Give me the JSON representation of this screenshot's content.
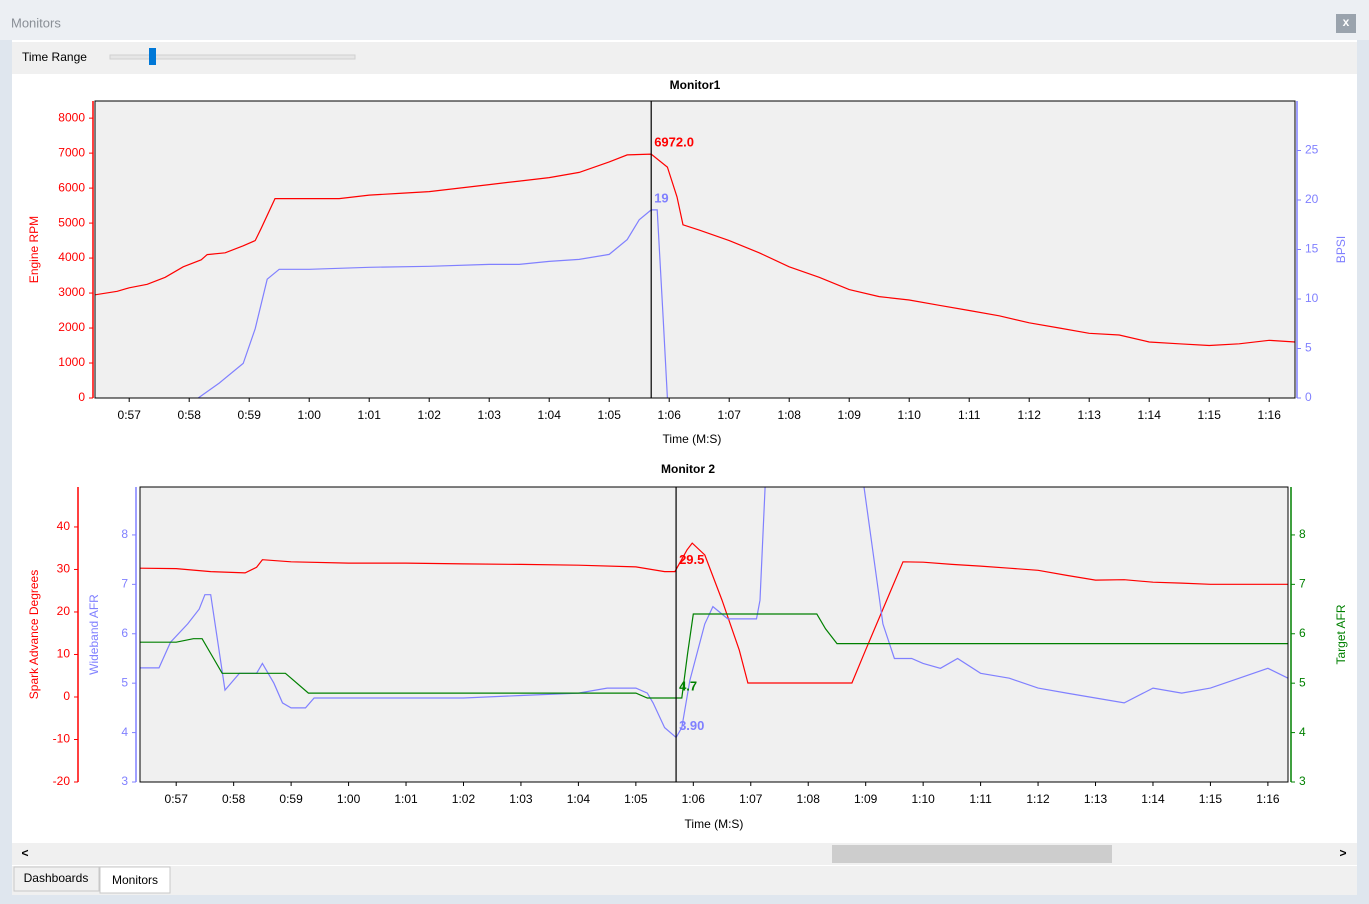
{
  "window": {
    "title": "Monitors",
    "close": "x"
  },
  "toolbar": {
    "label": "Time Range"
  },
  "scrollbar": {
    "left": "<",
    "right": ">"
  },
  "tabs": [
    "Dashboards",
    "Monitors"
  ],
  "chart_data": [
    {
      "type": "line",
      "title": "Monitor1",
      "xlabel": "Time (M:S)",
      "ylabel": "Engine RPM",
      "y2label": "BPSI",
      "xlim": [
        56.43,
        76.43
      ],
      "ylim": [
        0,
        8490
      ],
      "y2lim": [
        0,
        30
      ],
      "xticks": [
        {
          "value": 57,
          "label": "0:57"
        },
        {
          "value": 58,
          "label": "0:58"
        },
        {
          "value": 59,
          "label": "0:59"
        },
        {
          "value": 60,
          "label": "1:00"
        },
        {
          "value": 61,
          "label": "1:01"
        },
        {
          "value": 62,
          "label": "1:02"
        },
        {
          "value": 63,
          "label": "1:03"
        },
        {
          "value": 64,
          "label": "1:04"
        },
        {
          "value": 65,
          "label": "1:05"
        },
        {
          "value": 66,
          "label": "1:06"
        },
        {
          "value": 67,
          "label": "1:07"
        },
        {
          "value": 68,
          "label": "1:08"
        },
        {
          "value": 69,
          "label": "1:09"
        },
        {
          "value": 70,
          "label": "1:10"
        },
        {
          "value": 71,
          "label": "1:11"
        },
        {
          "value": 72,
          "label": "1:12"
        },
        {
          "value": 73,
          "label": "1:13"
        },
        {
          "value": 74,
          "label": "1:14"
        },
        {
          "value": 75,
          "label": "1:15"
        },
        {
          "value": 76,
          "label": "1:16"
        }
      ],
      "yticks": [
        0,
        1000,
        2000,
        3000,
        4000,
        5000,
        6000,
        7000,
        8000
      ],
      "y2ticks": [
        0,
        5,
        10,
        15,
        20,
        25
      ],
      "series": [
        {
          "color": "#ff0000",
          "axis": "y",
          "x": [
            56.43,
            56.8,
            57.0,
            57.3,
            57.6,
            57.9,
            58.2,
            58.3,
            58.6,
            58.9,
            59.1,
            59.2,
            59.43,
            60.0,
            60.5,
            61.0,
            61.5,
            62.0,
            62.5,
            63.0,
            63.5,
            64.0,
            64.5,
            65.0,
            65.3,
            65.7,
            65.97,
            66.13,
            66.23,
            66.5,
            67.0,
            67.5,
            68.0,
            68.5,
            69.0,
            69.5,
            70.0,
            70.5,
            71.0,
            71.5,
            72.0,
            72.5,
            73.0,
            73.5,
            74.0,
            74.5,
            75.0,
            75.5,
            76.0,
            76.43
          ],
          "values": [
            2950,
            3050,
            3150,
            3250,
            3450,
            3750,
            3950,
            4100,
            4150,
            4350,
            4500,
            4850,
            5700,
            5700,
            5700,
            5800,
            5850,
            5900,
            6000,
            6100,
            6200,
            6300,
            6450,
            6750,
            6950,
            6972,
            6600,
            5750,
            4950,
            4800,
            4500,
            4150,
            3750,
            3450,
            3100,
            2900,
            2800,
            2650,
            2500,
            2350,
            2150,
            2000,
            1850,
            1800,
            1600,
            1550,
            1500,
            1550,
            1650,
            1600
          ]
        },
        {
          "color": "#8080ff",
          "axis": "y2",
          "x": [
            58.15,
            58.5,
            58.9,
            59.1,
            59.3,
            59.5,
            60.0,
            61.0,
            62.0,
            63.0,
            63.5,
            64.0,
            64.5,
            65.0,
            65.3,
            65.5,
            65.7,
            65.8,
            65.9,
            65.97
          ],
          "values": [
            0,
            1.5,
            3.5,
            7,
            12,
            13,
            13,
            13.2,
            13.3,
            13.5,
            13.5,
            13.8,
            14,
            14.5,
            16,
            18,
            19,
            19,
            8,
            0
          ]
        }
      ],
      "cursor": {
        "x": 65.7,
        "values": [
          6972,
          19
        ],
        "value_labels": [
          "6972.0",
          "19"
        ]
      }
    },
    {
      "type": "line",
      "title": "Monitor 2",
      "xlabel": "Time (M:S)",
      "ylabel": "Spark Advance Degrees",
      "y3label": "Wideband AFR",
      "y2label": "Target AFR",
      "xlim": [
        56.37,
        76.35
      ],
      "ylim": [
        -20,
        49.4
      ],
      "y3lim": [
        3,
        8.97
      ],
      "y2lim": [
        3,
        8.97
      ],
      "xticks": [
        {
          "value": 57,
          "label": "0:57"
        },
        {
          "value": 58,
          "label": "0:58"
        },
        {
          "value": 59,
          "label": "0:59"
        },
        {
          "value": 60,
          "label": "1:00"
        },
        {
          "value": 61,
          "label": "1:01"
        },
        {
          "value": 62,
          "label": "1:02"
        },
        {
          "value": 63,
          "label": "1:03"
        },
        {
          "value": 64,
          "label": "1:04"
        },
        {
          "value": 65,
          "label": "1:05"
        },
        {
          "value": 66,
          "label": "1:06"
        },
        {
          "value": 67,
          "label": "1:07"
        },
        {
          "value": 68,
          "label": "1:08"
        },
        {
          "value": 69,
          "label": "1:09"
        },
        {
          "value": 70,
          "label": "1:10"
        },
        {
          "value": 71,
          "label": "1:11"
        },
        {
          "value": 72,
          "label": "1:12"
        },
        {
          "value": 73,
          "label": "1:13"
        },
        {
          "value": 74,
          "label": "1:14"
        },
        {
          "value": 75,
          "label": "1:15"
        },
        {
          "value": 76,
          "label": "1:16"
        }
      ],
      "yticks": [
        -20,
        -10,
        0,
        10,
        20,
        30,
        40
      ],
      "y3ticks": [
        3,
        4,
        5,
        6,
        7,
        8
      ],
      "y2ticks": [
        3,
        4,
        5,
        6,
        7,
        8
      ],
      "series": [
        {
          "color": "#ff0000",
          "axis": "y",
          "x": [
            56.37,
            57.0,
            57.6,
            58.2,
            58.4,
            58.5,
            59.0,
            60.0,
            61.0,
            62.0,
            63.0,
            64.0,
            65.0,
            65.5,
            65.68,
            65.89,
            65.98,
            66.2,
            66.5,
            66.8,
            66.95,
            67.5,
            68.0,
            68.76,
            69.0,
            69.65,
            70.0,
            70.5,
            71.0,
            71.5,
            72.0,
            72.5,
            73.0,
            73.5,
            74.0,
            74.5,
            75.0,
            75.5,
            76.35
          ],
          "values": [
            30.3,
            30.2,
            29.5,
            29.2,
            30.5,
            32.3,
            31.8,
            31.5,
            31.5,
            31.3,
            31.2,
            31.0,
            30.6,
            29.5,
            29.5,
            34.6,
            36.2,
            33.4,
            22.8,
            11,
            3.3,
            3.3,
            3.3,
            3.3,
            11.1,
            31.8,
            31.7,
            31.2,
            30.8,
            30.3,
            29.8,
            28.6,
            27.5,
            27.6,
            27.0,
            26.8,
            26.5,
            26.5,
            26.5
          ]
        },
        {
          "color": "#8080ff",
          "axis": "y3",
          "x": [
            56.37,
            56.7,
            56.9,
            57.2,
            57.4,
            57.5,
            57.6,
            57.85,
            58.1,
            58.4,
            58.5,
            58.7,
            58.85,
            59.0,
            59.25,
            59.4,
            60.0,
            61.0,
            62.0,
            63.0,
            64.0,
            64.5,
            65.0,
            65.2,
            65.3,
            65.5,
            65.7,
            65.8,
            65.94,
            66.2,
            66.34,
            66.6,
            67.0,
            67.1,
            67.16,
            67.25,
            67.6,
            68.97,
            69.3,
            69.5,
            69.8,
            70.0,
            70.3,
            70.6,
            71.0,
            71.5,
            72.0,
            72.5,
            73.0,
            73.5,
            74.0,
            74.5,
            75.0,
            75.5,
            76.0,
            76.35
          ],
          "values": [
            5.31,
            5.31,
            5.83,
            6.2,
            6.5,
            6.79,
            6.79,
            4.86,
            5.2,
            5.2,
            5.4,
            5.0,
            4.6,
            4.5,
            4.5,
            4.7,
            4.7,
            4.7,
            4.7,
            4.75,
            4.8,
            4.9,
            4.9,
            4.8,
            4.6,
            4.1,
            3.9,
            4.1,
            5.06,
            6.2,
            6.55,
            6.3,
            6.3,
            6.3,
            6.68,
            8.97,
            null,
            8.97,
            6.2,
            5.5,
            5.5,
            5.4,
            5.3,
            5.5,
            5.2,
            5.1,
            4.9,
            4.8,
            4.7,
            4.6,
            4.9,
            4.8,
            4.9,
            5.1,
            5.3,
            5.1
          ]
        },
        {
          "color": "#008000",
          "axis": "y2",
          "x": [
            56.37,
            57.0,
            57.3,
            57.45,
            57.6,
            57.8,
            58.5,
            58.9,
            59.0,
            59.3,
            65.0,
            65.2,
            65.8,
            65.9,
            66.0,
            68.15,
            68.3,
            68.5,
            76.35
          ],
          "values": [
            5.83,
            5.83,
            5.9,
            5.9,
            5.6,
            5.2,
            5.2,
            5.2,
            5.1,
            4.8,
            4.8,
            4.7,
            4.7,
            5.6,
            6.4,
            6.4,
            6.1,
            5.8,
            5.8
          ]
        }
      ],
      "cursor": {
        "x": 65.7,
        "values": [
          29.5,
          3.9,
          4.7
        ],
        "value_labels": [
          "29.5",
          "3.90",
          "4.7"
        ]
      }
    }
  ]
}
